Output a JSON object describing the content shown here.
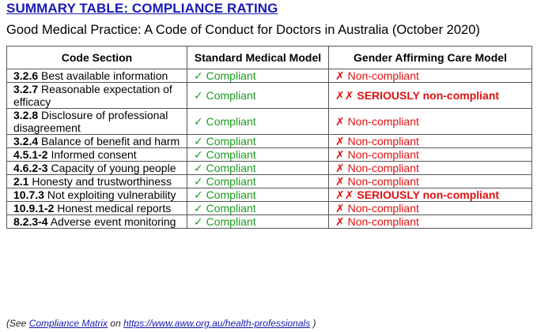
{
  "title": "SUMMARY TABLE: COMPLIANCE RATING",
  "subtitle": "Good Medical Practice: A Code of Conduct for Doctors in Australia (October 2020)",
  "table": {
    "headers": [
      "Code Section",
      "Standard Medical Model",
      "Gender Affirming Care Model"
    ],
    "rows": [
      {
        "code": "3.2.6",
        "desc": " Best available information",
        "standard": "✓ Compliant",
        "gac": "✗ Non-compliant",
        "severity": "normal"
      },
      {
        "code": "3.2.7",
        "desc": " Reasonable expectation of efficacy",
        "standard": "✓ Compliant",
        "gac": "✗✗ SERIOUSLY non-compliant",
        "severity": "serious"
      },
      {
        "code": "3.2.8",
        "desc": " Disclosure of professional disagreement",
        "standard": "✓ Compliant",
        "gac": "✗ Non-compliant",
        "severity": "normal"
      },
      {
        "code": "3.2.4",
        "desc": " Balance of benefit and harm",
        "standard": "✓ Compliant",
        "gac": "✗ Non-compliant",
        "severity": "normal"
      },
      {
        "code": "4.5.1-2",
        "desc": " Informed consent",
        "standard": "✓ Compliant",
        "gac": "✗ Non-compliant",
        "severity": "normal"
      },
      {
        "code": "4.6.2-3",
        "desc": " Capacity of young people",
        "standard": "✓ Compliant",
        "gac": "✗ Non-compliant",
        "severity": "normal"
      },
      {
        "code": "2.1",
        "desc": " Honesty and trustworthiness",
        "standard": "✓ Compliant",
        "gac": "✗ Non-compliant",
        "severity": "normal"
      },
      {
        "code": "10.7.3",
        "desc": " Not exploiting vulnerability",
        "standard": "✓ Compliant",
        "gac": "✗✗ SERIOUSLY non-compliant",
        "severity": "serious"
      },
      {
        "code": "10.9.1-2",
        "desc": " Honest medical reports",
        "standard": "✓ Compliant",
        "gac": "✗ Non-compliant",
        "severity": "normal"
      },
      {
        "code": "8.2.3-4",
        "desc": " Adverse event monitoring",
        "standard": "✓ Compliant",
        "gac": "✗ Non-compliant",
        "severity": "normal"
      }
    ]
  },
  "footer": {
    "prefix": "(See ",
    "link1": "Compliance Matrix",
    "middle": " on ",
    "link2": "https://www.aww.org.au/health-professionals",
    "suffix": " )"
  },
  "colors": {
    "title": "#1a1ab4",
    "compliant": "#1d9b22",
    "noncompliant": "#e01010",
    "link": "#1a1ab4"
  }
}
